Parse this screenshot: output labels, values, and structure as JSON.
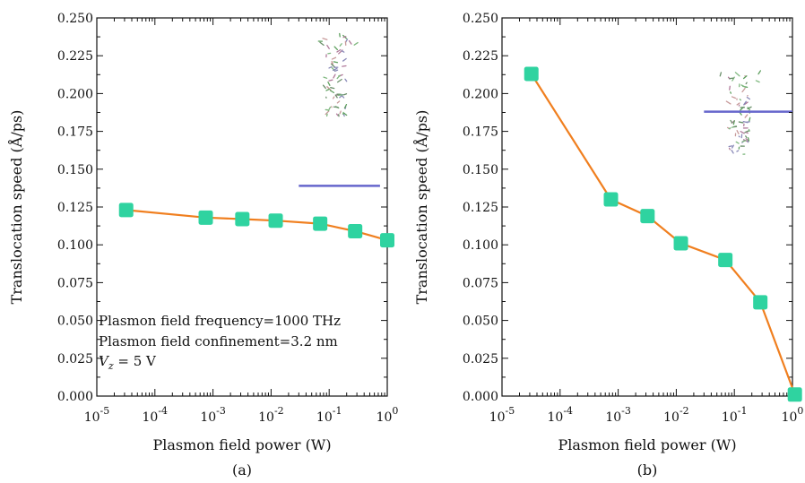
{
  "chart_data": [
    {
      "type": "line",
      "panel_label": "(a)",
      "xlabel": "Plasmon field power (W)",
      "ylabel": "Translocation speed (Å/ps)",
      "xscale": "log",
      "xlim": [
        1e-05,
        1
      ],
      "ylim": [
        0,
        0.25
      ],
      "xticks": [
        "10^-5",
        "10^-4",
        "10^-3",
        "10^-2",
        "10^-1",
        "10^0"
      ],
      "yticks": [
        "0.000",
        "0.025",
        "0.050",
        "0.075",
        "0.100",
        "0.125",
        "0.150",
        "0.175",
        "0.200",
        "0.225",
        "0.250"
      ],
      "series": [
        {
          "color": "#f07f1f",
          "marker_color": "#2fd3a0",
          "x": [
            3.2e-05,
            0.00075,
            0.0032,
            0.012,
            0.07,
            0.28,
            1.0
          ],
          "y": [
            0.123,
            0.118,
            0.117,
            0.116,
            0.114,
            0.109,
            0.103
          ]
        }
      ],
      "annotations": [
        "Plasmon field frequency=1000 THz",
        "Plasmon field confinement=3.2 nm",
        "V_z = 5 V"
      ],
      "reference_line": {
        "color": "#6666cc",
        "x": [
          0.03,
          0.75
        ],
        "y": 0.139
      },
      "grid": false
    },
    {
      "type": "line",
      "panel_label": "(b)",
      "xlabel": "Plasmon field power (W)",
      "ylabel": "Translocation speed (Å/ps)",
      "xscale": "log",
      "xlim": [
        1e-05,
        1
      ],
      "ylim": [
        0,
        0.25
      ],
      "xticks": [
        "10^-5",
        "10^-4",
        "10^-3",
        "10^-2",
        "10^-1",
        "10^0"
      ],
      "yticks": [
        "0.000",
        "0.025",
        "0.050",
        "0.075",
        "0.100",
        "0.125",
        "0.150",
        "0.175",
        "0.200",
        "0.225",
        "0.250"
      ],
      "series": [
        {
          "color": "#f07f1f",
          "marker_color": "#2fd3a0",
          "x": [
            3.2e-05,
            0.00075,
            0.0032,
            0.012,
            0.07,
            0.28,
            1.1
          ],
          "y": [
            0.213,
            0.13,
            0.119,
            0.101,
            0.09,
            0.062,
            0.001
          ]
        }
      ],
      "annotations": [],
      "reference_line": {
        "color": "#6666cc",
        "x": [
          0.03,
          1.0
        ],
        "y": 0.188
      },
      "grid": false
    }
  ]
}
